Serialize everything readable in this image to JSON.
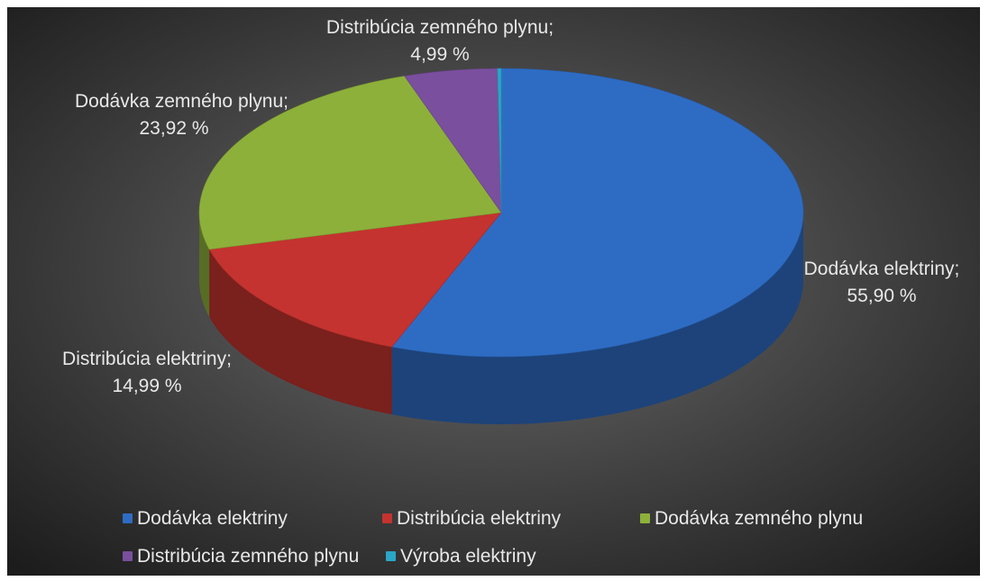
{
  "chart_data": {
    "type": "pie",
    "style": "3d",
    "title": "",
    "categories": [
      "Dodávka elektriny",
      "Distribúcia elektriny",
      "Dodávka zemného plynu",
      "Distribúcia zemného plynu",
      "Výroba elektriny"
    ],
    "values": [
      55.9,
      14.99,
      23.92,
      4.99,
      0.2
    ],
    "value_labels": [
      "55,90 %",
      "14,99 %",
      "23,92 %",
      "4,99 %",
      ""
    ],
    "label_separator": "; ",
    "legend_position": "bottom",
    "colors": [
      "#2e6cc4",
      "#c4332f",
      "#8db03a",
      "#7a4f9e",
      "#2aa6c6"
    ]
  },
  "background": {
    "inner": "#6e6e6e",
    "outer": "#1c1c1c"
  }
}
